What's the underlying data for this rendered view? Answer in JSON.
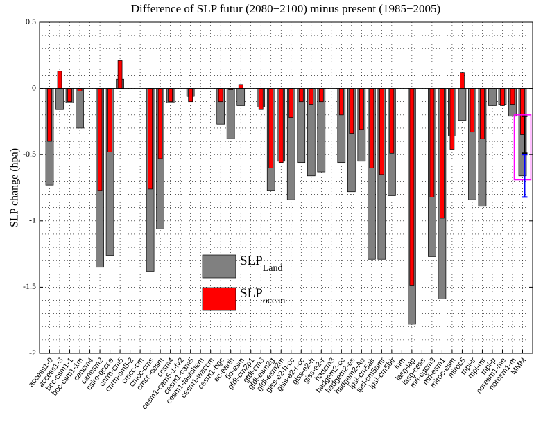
{
  "chart_data": {
    "type": "bar",
    "title": "Difference of SLP futur (2080−2100) minus present (1985−2005)",
    "y_label": "SLP change (hpa)",
    "categories": [
      "access1-0",
      "access1-3",
      "bcc-csm1-1",
      "bcc-csm1-1m",
      "cancm4",
      "canesm2",
      "csiro-qccce",
      "cnrm-cm5",
      "cnrm-cm5-2",
      "cmcc-cm",
      "cmcc-cms",
      "cmcc-cesm",
      "ccsm4",
      "cesm1-cam5-1-fv2",
      "cesm1-cam5",
      "cesm1-fastchem",
      "cesm1-waccm",
      "cesm1-bgc",
      "ec-earth",
      "fio-esm",
      "gfdl-cm2p1",
      "gfdl-cm3",
      "gfdl-esm2g",
      "gfdl-esm2m",
      "giss-e2-h-cc",
      "giss-e2-r-cc",
      "giss-e2-h",
      "giss-e2-r",
      "hadcm3",
      "hadgem2-cc",
      "hadgem2-es",
      "hadgem2-Ao",
      "ipsl-cm5alr",
      "ipsl-cm5amr",
      "ipsl-cm5blr",
      "inm",
      "lasg-iap",
      "lasg-cess",
      "mri-cgcm3",
      "mri-esm1",
      "miroc-esm",
      "miroc5",
      "mpi-lr",
      "mpi-mr",
      "mpi-p",
      "noresm1-me",
      "noresm1-m",
      "MMM"
    ],
    "series": [
      {
        "name": "SLP",
        "subscript": "Land",
        "color": "#808080",
        "error_color": "#0000ff",
        "values": [
          -0.73,
          -0.16,
          -0.11,
          -0.3,
          null,
          -1.35,
          -1.26,
          0.07,
          null,
          null,
          -1.38,
          -1.06,
          -0.11,
          null,
          -0.06,
          null,
          null,
          -0.27,
          -0.38,
          -0.13,
          null,
          -0.14,
          -0.77,
          -0.55,
          -0.84,
          -0.56,
          -0.66,
          -0.63,
          null,
          -0.56,
          -0.78,
          -0.55,
          -1.29,
          -1.29,
          -0.81,
          null,
          -1.78,
          null,
          -1.27,
          -1.59,
          -0.36,
          -0.24,
          -0.84,
          -0.89,
          -0.13,
          -0.12,
          -0.21,
          -0.66
        ],
        "errors": [
          null,
          null,
          null,
          null,
          null,
          null,
          null,
          null,
          null,
          null,
          null,
          null,
          null,
          null,
          null,
          null,
          null,
          null,
          null,
          null,
          null,
          null,
          null,
          null,
          null,
          null,
          null,
          null,
          null,
          null,
          null,
          null,
          null,
          null,
          null,
          null,
          null,
          null,
          null,
          null,
          null,
          null,
          null,
          null,
          null,
          null,
          null,
          0.16
        ]
      },
      {
        "name": "SLP",
        "subscript": "ocean",
        "color": "#ff0000",
        "error_color": "#000000",
        "values": [
          -0.4,
          0.13,
          -0.1,
          -0.02,
          null,
          -0.77,
          -0.48,
          0.21,
          null,
          null,
          -0.76,
          -0.53,
          -0.1,
          null,
          -0.1,
          null,
          null,
          -0.1,
          -0.01,
          0.03,
          null,
          -0.16,
          -0.6,
          -0.56,
          -0.22,
          -0.1,
          -0.12,
          -0.1,
          null,
          -0.2,
          -0.34,
          -0.31,
          -0.6,
          -0.65,
          -0.49,
          null,
          -1.49,
          null,
          -0.82,
          -0.98,
          -0.46,
          0.12,
          -0.33,
          -0.38,
          null,
          -0.13,
          -0.12,
          -0.35
        ],
        "errors": [
          null,
          null,
          null,
          null,
          null,
          null,
          null,
          null,
          null,
          null,
          null,
          null,
          null,
          null,
          null,
          null,
          null,
          null,
          null,
          null,
          null,
          null,
          null,
          null,
          null,
          null,
          null,
          null,
          null,
          null,
          null,
          null,
          null,
          null,
          null,
          null,
          null,
          null,
          null,
          null,
          null,
          null,
          null,
          null,
          null,
          null,
          null,
          0.14
        ]
      }
    ],
    "range_box": {
      "category": 47,
      "values": [
        -0.2,
        -0.69
      ],
      "color": "#ff00ff"
    },
    "ylim": [
      -2,
      0.5
    ],
    "yticks": [
      -2,
      -1.5,
      -1,
      -0.5,
      0,
      0.5
    ],
    "minor_yticks": [
      -1.9,
      -1.8,
      -1.7,
      -1.6,
      -1.4,
      -1.3,
      -1.2,
      -1.1,
      -0.9,
      -0.8,
      -0.7,
      -0.6,
      -0.4,
      -0.3,
      -0.2,
      -0.1,
      0.1,
      0.2,
      0.3,
      0.4
    ],
    "grid": true
  }
}
